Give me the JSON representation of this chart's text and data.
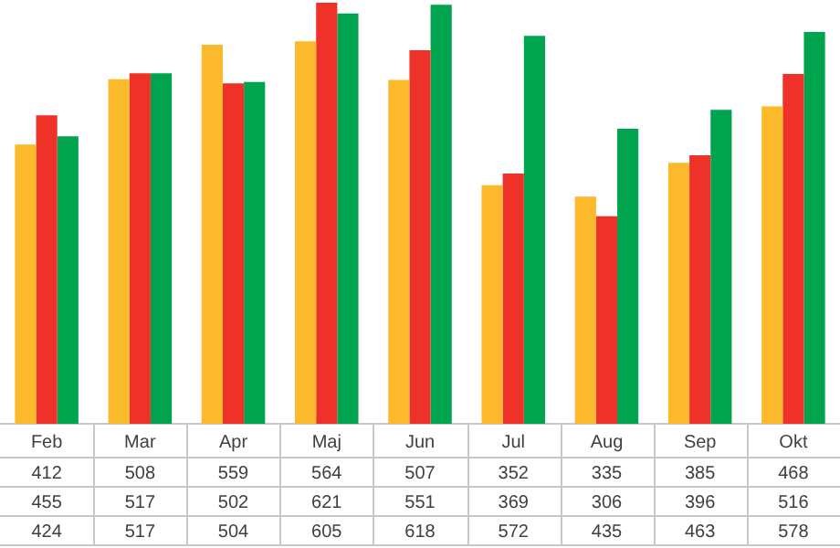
{
  "chart_data": {
    "type": "bar",
    "categories": [
      "Feb",
      "Mar",
      "Apr",
      "Maj",
      "Jun",
      "Jul",
      "Aug",
      "Sep",
      "Okt"
    ],
    "series": [
      {
        "color": "#fdb92c",
        "values": [
          412,
          508,
          559,
          564,
          507,
          352,
          335,
          385,
          468
        ]
      },
      {
        "color": "#ee3129",
        "values": [
          455,
          517,
          502,
          621,
          551,
          369,
          306,
          396,
          516
        ]
      },
      {
        "color": "#00a44f",
        "values": [
          424,
          517,
          504,
          605,
          618,
          572,
          435,
          463,
          578
        ]
      }
    ],
    "ylim": [
      0,
      625
    ],
    "data_labels": true,
    "grid": false,
    "legend": false
  }
}
